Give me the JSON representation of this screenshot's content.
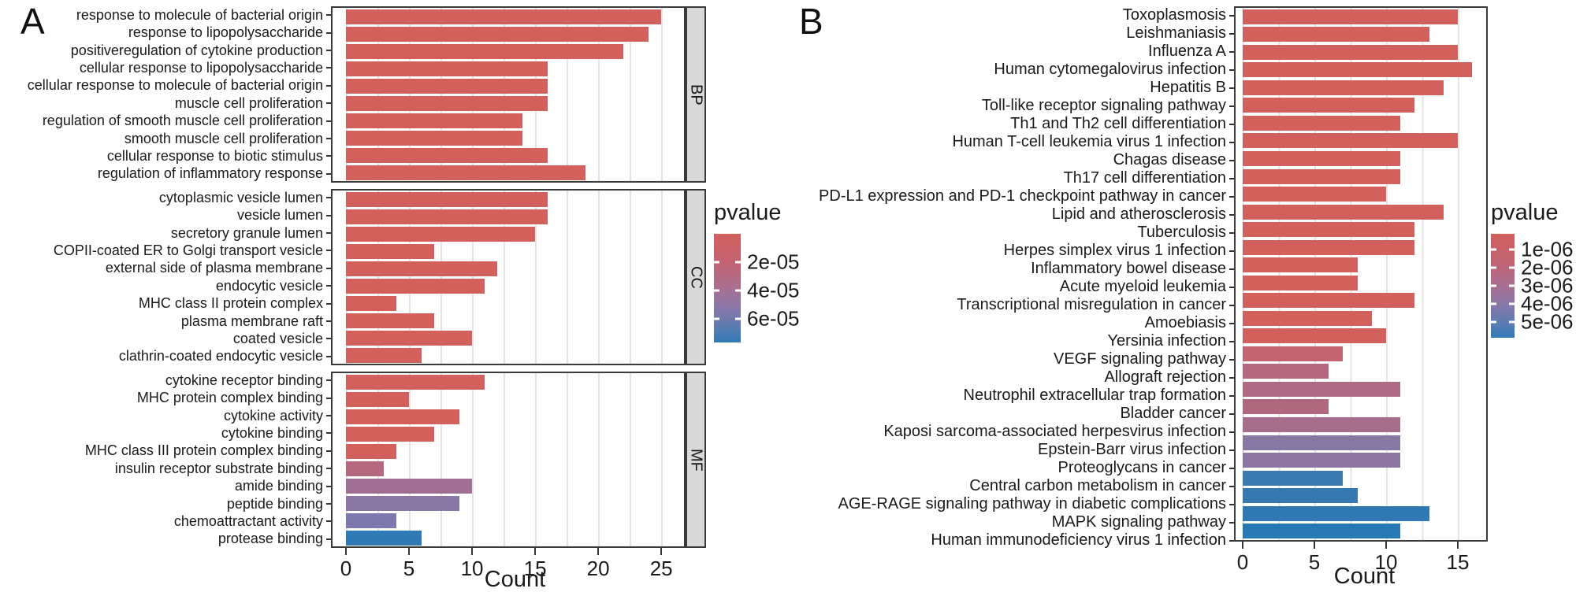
{
  "figure": {
    "panel_a_tag": "A",
    "panel_b_tag": "B"
  },
  "chart_data": [
    {
      "panel": "A",
      "type": "bar",
      "orientation": "horizontal",
      "xlabel": "Count",
      "x_ticks": [
        0,
        5,
        10,
        15,
        20,
        25
      ],
      "xlim": [
        0,
        26.8
      ],
      "grid": "on",
      "legend": {
        "title": "pvalue",
        "position": "right",
        "ticks": [
          "2e-05",
          "4e-05",
          "6e-05"
        ],
        "tick_pct": [
          26,
          52,
          78
        ],
        "gradient": [
          "#d2605c",
          "#2f79b5"
        ]
      },
      "facets": [
        {
          "strip": "BP",
          "categories": [
            "response to molecule of bacterial origin",
            "response to lipopolysaccharide",
            "positiveregulation of cytokine production",
            "cellular response to lipopolysaccharide",
            "cellular response to molecule of bacterial origin",
            "muscle cell proliferation",
            "regulation of smooth muscle cell proliferation",
            "smooth muscle cell proliferation",
            "cellular response to biotic stimulus",
            "regulation of inflammatory response"
          ],
          "values": [
            25,
            24,
            22,
            16,
            16,
            16,
            14,
            14,
            16,
            19
          ],
          "colors": [
            "#d2605c",
            "#d2605c",
            "#d2605c",
            "#d2605c",
            "#d2605c",
            "#d2605c",
            "#d2605c",
            "#d2605c",
            "#d2605c",
            "#d2605c"
          ]
        },
        {
          "strip": "CC",
          "categories": [
            "cytoplasmic vesicle lumen",
            "vesicle lumen",
            "secretory granule lumen",
            "COPII-coated ER to Golgi transport vesicle",
            "external side of plasma membrane",
            "endocytic vesicle",
            "MHC class II protein complex",
            "plasma membrane raft",
            "coated vesicle",
            "clathrin-coated endocytic vesicle"
          ],
          "values": [
            16,
            16,
            15,
            7,
            12,
            11,
            4,
            7,
            10,
            6
          ],
          "colors": [
            "#d2605c",
            "#d2605c",
            "#d2605c",
            "#d2605c",
            "#d2605c",
            "#d2605c",
            "#d2605c",
            "#d2605c",
            "#d2605c",
            "#d2605c"
          ]
        },
        {
          "strip": "MF",
          "categories": [
            "cytokine receptor binding",
            "MHC protein complex binding",
            "cytokine activity",
            "cytokine binding",
            "MHC class III protein complex binding",
            "insulin receptor substrate binding",
            "amide binding",
            "peptide binding",
            "chemoattractant activity",
            "protease binding"
          ],
          "values": [
            11,
            5,
            9,
            7,
            4,
            3,
            10,
            9,
            4,
            6
          ],
          "colors": [
            "#d2605c",
            "#d2605c",
            "#d2605c",
            "#d2605c",
            "#d2605c",
            "#b5697f",
            "#a06f94",
            "#8a77a6",
            "#7d79ae",
            "#2f79b5"
          ]
        }
      ]
    },
    {
      "panel": "B",
      "type": "bar",
      "orientation": "horizontal",
      "xlabel": "Count",
      "x_ticks": [
        0,
        5,
        10,
        15
      ],
      "xlim": [
        0,
        16.98
      ],
      "grid": "on",
      "legend": {
        "title": "pvalue",
        "position": "right",
        "ticks": [
          "1e-06",
          "2e-06",
          "3e-06",
          "4e-06",
          "5e-06"
        ],
        "tick_pct": [
          15,
          32.5,
          50,
          67.5,
          85
        ],
        "gradient": [
          "#d2605c",
          "#2f79b5"
        ]
      },
      "categories": [
        "Toxoplasmosis",
        "Leishmaniasis",
        "Influenza A",
        "Human cytomegalovirus infection",
        "Hepatitis B",
        "Toll-like receptor signaling pathway",
        "Th1 and Th2 cell differentiation",
        "Human T-cell leukemia virus 1 infection",
        "Chagas disease",
        "Th17 cell differentiation",
        "PD-L1 expression and PD-1 checkpoint pathway in cancer",
        "Lipid and atherosclerosis",
        "Tuberculosis",
        "Herpes simplex virus 1 infection",
        "Inflammatory bowel disease",
        "Acute myeloid leukemia",
        "Transcriptional misregulation in cancer",
        "Amoebiasis",
        "Yersinia infection",
        "VEGF signaling pathway",
        "Allograft rejection",
        "Neutrophil extracellular trap formation",
        "Bladder cancer",
        "Kaposi sarcoma-associated herpesvirus infection",
        "Epstein-Barr virus infection",
        "Proteoglycans in cancer",
        "Central carbon metabolism in cancer",
        "AGE-RAGE signaling pathway in diabetic complications",
        "MAPK signaling pathway",
        "Human immunodeficiency virus 1 infection"
      ],
      "values": [
        15,
        13,
        15,
        16,
        14,
        12,
        11,
        15,
        11,
        11,
        10,
        14,
        12,
        12,
        8,
        8,
        12,
        9,
        10,
        7,
        6,
        11,
        6,
        11,
        11,
        11,
        7,
        8,
        13,
        11
      ],
      "colors": [
        "#d2605c",
        "#d2605c",
        "#d2605c",
        "#d2605c",
        "#d2605c",
        "#d2605c",
        "#d2605c",
        "#d2605c",
        "#d2605c",
        "#d2605c",
        "#d2605c",
        "#d2605c",
        "#d2605c",
        "#d2605c",
        "#d2605c",
        "#d2605c",
        "#d2605c",
        "#d2605c",
        "#d2605c",
        "#c36370",
        "#b3687e",
        "#ae6a84",
        "#b0687f",
        "#a76d8c",
        "#8677a3",
        "#8a76a0",
        "#3b79ae",
        "#3679b1",
        "#2f78b3",
        "#2779b6"
      ]
    }
  ]
}
